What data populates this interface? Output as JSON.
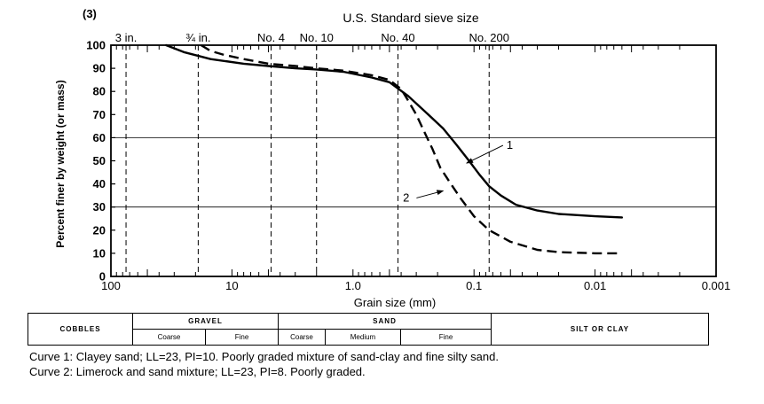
{
  "figure": {
    "number": "(3)"
  },
  "chart_data": {
    "type": "line",
    "title": "U.S. Standard sieve size",
    "xlabel": "Grain size (mm)",
    "ylabel": "Percent finer by weight (or mass)",
    "x_scale": "log",
    "x_reversed": true,
    "xlim": [
      100,
      0.001
    ],
    "ylim": [
      0,
      100
    ],
    "x_ticks": [
      {
        "value": 100,
        "label": "100"
      },
      {
        "value": 10,
        "label": "10"
      },
      {
        "value": 1,
        "label": "1.0"
      },
      {
        "value": 0.1,
        "label": "0.1"
      },
      {
        "value": 0.01,
        "label": "0.01"
      },
      {
        "value": 0.001,
        "label": "0.001"
      }
    ],
    "y_ticks": [
      0,
      10,
      20,
      30,
      40,
      50,
      60,
      70,
      80,
      90,
      100
    ],
    "sieves": [
      {
        "label": "3 in.",
        "mm": 75
      },
      {
        "label": "¾ in.",
        "mm": 19
      },
      {
        "label": "No. 4",
        "mm": 4.75
      },
      {
        "label": "No. 10",
        "mm": 2.0
      },
      {
        "label": "No. 40",
        "mm": 0.425
      },
      {
        "label": "No. 200",
        "mm": 0.075
      }
    ],
    "grid_y": [
      30,
      60
    ],
    "series": [
      {
        "name": "1",
        "style": "solid",
        "points": [
          [
            35,
            100
          ],
          [
            25,
            97
          ],
          [
            15,
            94
          ],
          [
            8,
            92
          ],
          [
            5,
            91
          ],
          [
            3,
            90
          ],
          [
            2,
            89.5
          ],
          [
            1.2,
            88.5
          ],
          [
            0.7,
            86
          ],
          [
            0.5,
            84
          ],
          [
            0.35,
            78
          ],
          [
            0.25,
            71
          ],
          [
            0.18,
            64
          ],
          [
            0.14,
            57
          ],
          [
            0.11,
            50
          ],
          [
            0.09,
            44
          ],
          [
            0.075,
            39
          ],
          [
            0.06,
            35
          ],
          [
            0.045,
            31
          ],
          [
            0.03,
            28.5
          ],
          [
            0.02,
            27
          ],
          [
            0.01,
            26
          ],
          [
            0.006,
            25.5
          ]
        ]
      },
      {
        "name": "2",
        "style": "dashed",
        "points": [
          [
            18,
            100
          ],
          [
            15,
            97.5
          ],
          [
            12,
            96
          ],
          [
            8,
            94
          ],
          [
            5,
            92
          ],
          [
            3,
            91
          ],
          [
            2,
            90
          ],
          [
            1.2,
            89
          ],
          [
            0.7,
            87
          ],
          [
            0.5,
            85
          ],
          [
            0.4,
            81
          ],
          [
            0.35,
            76
          ],
          [
            0.3,
            70
          ],
          [
            0.26,
            63
          ],
          [
            0.22,
            55
          ],
          [
            0.19,
            47
          ],
          [
            0.16,
            41
          ],
          [
            0.13,
            34
          ],
          [
            0.1,
            26
          ],
          [
            0.075,
            20
          ],
          [
            0.05,
            15
          ],
          [
            0.03,
            11.5
          ],
          [
            0.02,
            10.5
          ],
          [
            0.01,
            10
          ],
          [
            0.006,
            10
          ]
        ]
      }
    ]
  },
  "classification": {
    "cobbles": "COBBLES",
    "gravel": "GRAVEL",
    "sand": "SAND",
    "silt_clay": "SILT OR CLAY",
    "gravel_coarse": "Coarse",
    "gravel_fine": "Fine",
    "sand_coarse": "Coarse",
    "sand_medium": "Medium",
    "sand_fine": "Fine"
  },
  "captions": [
    "Curve 1:  Clayey sand; LL=23, PI=10.  Poorly graded mixture of sand-clay and fine silty sand.",
    "Curve 2:  Limerock and sand mixture; LL=23, PI=8.  Poorly graded."
  ]
}
